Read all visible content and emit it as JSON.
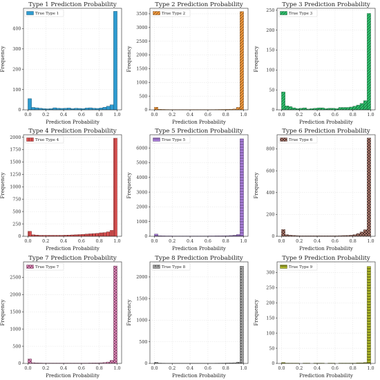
{
  "chart_data": [
    {
      "type": "bar",
      "title": "Type 1 Prediction Probability",
      "xlabel": "Prediction Probability",
      "ylabel": "Frequency",
      "legend": "True Type 1",
      "legend_position": "top-left",
      "color": "#2e9bd0",
      "hatch": "none",
      "grid": true,
      "xlim": [
        -0.05,
        1.05
      ],
      "ylim": [
        0,
        500
      ],
      "xticks": [
        "0.0",
        "0.2",
        "0.4",
        "0.6",
        "0.8",
        "1.0"
      ],
      "yticks": [
        0,
        100,
        200,
        300,
        400
      ],
      "bins": [
        0.0,
        0.04,
        0.08,
        0.12,
        0.16,
        0.2,
        0.24,
        0.28,
        0.32,
        0.36,
        0.4,
        0.44,
        0.48,
        0.52,
        0.56,
        0.6,
        0.64,
        0.68,
        0.72,
        0.76,
        0.8,
        0.84,
        0.88,
        0.92,
        0.96
      ],
      "values": [
        55,
        12,
        10,
        8,
        6,
        5,
        6,
        10,
        8,
        7,
        8,
        9,
        6,
        8,
        7,
        6,
        9,
        10,
        8,
        7,
        9,
        13,
        18,
        25,
        485
      ]
    },
    {
      "type": "bar",
      "title": "Type 2 Prediction Probability",
      "xlabel": "Prediction Probability",
      "ylabel": "Frequency",
      "legend": "True Type 2",
      "legend_position": "top-left",
      "color": "#f59a3c",
      "hatch": "diagonal",
      "grid": true,
      "xlim": [
        -0.05,
        1.05
      ],
      "ylim": [
        0,
        3700
      ],
      "xticks": [
        "0.0",
        "0.2",
        "0.4",
        "0.6",
        "0.8",
        "1.0"
      ],
      "yticks": [
        0,
        500,
        1000,
        1500,
        2000,
        2500,
        3000,
        3500
      ],
      "bins": [
        0.0,
        0.04,
        0.08,
        0.12,
        0.16,
        0.2,
        0.24,
        0.28,
        0.32,
        0.36,
        0.4,
        0.44,
        0.48,
        0.52,
        0.56,
        0.6,
        0.64,
        0.68,
        0.72,
        0.76,
        0.8,
        0.84,
        0.88,
        0.92,
        0.96
      ],
      "values": [
        95,
        20,
        15,
        12,
        10,
        10,
        10,
        10,
        10,
        10,
        10,
        10,
        10,
        10,
        10,
        10,
        10,
        12,
        14,
        15,
        18,
        22,
        30,
        90,
        3580
      ]
    },
    {
      "type": "bar",
      "title": "Type 3 Prediction Probability",
      "xlabel": "Prediction Probability",
      "ylabel": "Frequency",
      "legend": "True Type 3",
      "legend_position": "top-left",
      "color": "#2ec46e",
      "hatch": "diagonal",
      "grid": true,
      "xlim": [
        -0.05,
        1.05
      ],
      "ylim": [
        0,
        255
      ],
      "xticks": [
        "0.0",
        "0.2",
        "0.4",
        "0.6",
        "0.8",
        "1.0"
      ],
      "yticks": [
        0,
        50,
        100,
        150,
        200,
        250
      ],
      "bins": [
        0.0,
        0.04,
        0.08,
        0.12,
        0.16,
        0.2,
        0.24,
        0.28,
        0.32,
        0.36,
        0.4,
        0.44,
        0.48,
        0.52,
        0.56,
        0.6,
        0.64,
        0.68,
        0.72,
        0.76,
        0.8,
        0.84,
        0.88,
        0.92,
        0.96
      ],
      "values": [
        45,
        10,
        8,
        5,
        3,
        4,
        5,
        2,
        3,
        4,
        5,
        5,
        3,
        4,
        4,
        3,
        6,
        6,
        6,
        7,
        9,
        12,
        16,
        23,
        242
      ]
    },
    {
      "type": "bar",
      "title": "Type 4 Prediction Probability",
      "xlabel": "Prediction Probability",
      "ylabel": "Frequency",
      "legend": "True Type 4",
      "legend_position": "top-left",
      "color": "#e05252",
      "hatch": "vertical",
      "grid": true,
      "xlim": [
        -0.05,
        1.05
      ],
      "ylim": [
        0,
        2050
      ],
      "xticks": [
        "0.0",
        "0.2",
        "0.4",
        "0.6",
        "0.8",
        "1.0"
      ],
      "yticks": [
        0,
        250,
        500,
        750,
        1000,
        1250,
        1500,
        1750,
        2000
      ],
      "bins": [
        0.0,
        0.04,
        0.08,
        0.12,
        0.16,
        0.2,
        0.24,
        0.28,
        0.32,
        0.36,
        0.4,
        0.44,
        0.48,
        0.52,
        0.56,
        0.6,
        0.64,
        0.68,
        0.72,
        0.76,
        0.8,
        0.84,
        0.88,
        0.92,
        0.96
      ],
      "values": [
        100,
        30,
        25,
        20,
        20,
        20,
        20,
        20,
        20,
        20,
        22,
        25,
        28,
        32,
        35,
        40,
        45,
        50,
        55,
        60,
        70,
        75,
        90,
        120,
        1980
      ]
    },
    {
      "type": "bar",
      "title": "Type 5 Prediction Probability",
      "xlabel": "Prediction Probability",
      "ylabel": "Frequency",
      "legend": "True Type 5",
      "legend_position": "top-left",
      "color": "#a77bd8",
      "hatch": "horizontal",
      "grid": true,
      "xlim": [
        -0.05,
        1.05
      ],
      "ylim": [
        0,
        6900
      ],
      "xticks": [
        "0.0",
        "0.2",
        "0.4",
        "0.6",
        "0.8",
        "1.0"
      ],
      "yticks": [
        0,
        1000,
        2000,
        3000,
        4000,
        5000,
        6000
      ],
      "bins": [
        0.0,
        0.04,
        0.08,
        0.12,
        0.16,
        0.2,
        0.24,
        0.28,
        0.32,
        0.36,
        0.4,
        0.44,
        0.48,
        0.52,
        0.56,
        0.6,
        0.64,
        0.68,
        0.72,
        0.76,
        0.8,
        0.84,
        0.88,
        0.92,
        0.96
      ],
      "values": [
        150,
        40,
        30,
        25,
        25,
        20,
        20,
        20,
        20,
        20,
        20,
        20,
        20,
        20,
        20,
        25,
        25,
        30,
        30,
        35,
        40,
        50,
        70,
        120,
        6620
      ]
    },
    {
      "type": "bar",
      "title": "Type 6 Prediction Probability",
      "xlabel": "Prediction Probability",
      "ylabel": "Frequency",
      "legend": "True Type 6",
      "legend_position": "top-left",
      "color": "#b07a6e",
      "hatch": "checker",
      "grid": true,
      "xlim": [
        -0.05,
        1.05
      ],
      "ylim": [
        0,
        930
      ],
      "xticks": [
        "0.0",
        "0.2",
        "0.4",
        "0.6",
        "0.8",
        "1.0"
      ],
      "yticks": [
        0,
        200,
        400,
        600,
        800
      ],
      "bins": [
        0.0,
        0.04,
        0.08,
        0.12,
        0.16,
        0.2,
        0.24,
        0.28,
        0.32,
        0.36,
        0.4,
        0.44,
        0.48,
        0.52,
        0.56,
        0.6,
        0.64,
        0.68,
        0.72,
        0.76,
        0.8,
        0.84,
        0.88,
        0.92,
        0.96
      ],
      "values": [
        62,
        15,
        10,
        8,
        6,
        5,
        5,
        5,
        5,
        5,
        5,
        5,
        5,
        5,
        5,
        5,
        6,
        7,
        8,
        10,
        15,
        25,
        40,
        60,
        900
      ]
    },
    {
      "type": "bar",
      "title": "Type 7 Prediction Probability",
      "xlabel": "Prediction Probability",
      "ylabel": "Frequency",
      "legend": "True Type 7",
      "legend_position": "top-left",
      "color": "#f08bc4",
      "hatch": "cross",
      "grid": true,
      "xlim": [
        -0.05,
        1.05
      ],
      "ylim": [
        0,
        2950
      ],
      "xticks": [
        "0.0",
        "0.2",
        "0.4",
        "0.6",
        "0.8",
        "1.0"
      ],
      "yticks": [
        0,
        500,
        1000,
        1500,
        2000,
        2500
      ],
      "bins": [
        0.0,
        0.04,
        0.08,
        0.12,
        0.16,
        0.2,
        0.24,
        0.28,
        0.32,
        0.36,
        0.4,
        0.44,
        0.48,
        0.52,
        0.56,
        0.6,
        0.64,
        0.68,
        0.72,
        0.76,
        0.8,
        0.84,
        0.88,
        0.92,
        0.96
      ],
      "values": [
        130,
        20,
        15,
        12,
        10,
        10,
        10,
        10,
        10,
        10,
        10,
        10,
        10,
        10,
        10,
        10,
        10,
        12,
        14,
        15,
        18,
        25,
        40,
        90,
        2830
      ]
    },
    {
      "type": "bar",
      "title": "Type 8 Prediction Probability",
      "xlabel": "Prediction Probability",
      "ylabel": "Frequency",
      "legend": "True Type 8",
      "legend_position": "top-left",
      "color": "#9a9a9a",
      "hatch": "dots",
      "grid": true,
      "xlim": [
        -0.05,
        1.05
      ],
      "ylim": [
        0,
        2350
      ],
      "xticks": [
        "0.0",
        "0.2",
        "0.4",
        "0.6",
        "0.8",
        "1.0"
      ],
      "yticks": [
        0,
        500,
        1000,
        1500,
        2000
      ],
      "bins": [
        0.0,
        0.04,
        0.08,
        0.12,
        0.16,
        0.2,
        0.24,
        0.28,
        0.32,
        0.36,
        0.4,
        0.44,
        0.48,
        0.52,
        0.56,
        0.6,
        0.64,
        0.68,
        0.72,
        0.76,
        0.8,
        0.84,
        0.88,
        0.92,
        0.96
      ],
      "values": [
        25,
        8,
        6,
        5,
        5,
        5,
        5,
        5,
        5,
        5,
        5,
        5,
        5,
        5,
        5,
        5,
        5,
        6,
        7,
        8,
        10,
        12,
        15,
        30,
        2250
      ]
    },
    {
      "type": "bar",
      "title": "Type 9 Prediction Probability",
      "xlabel": "Prediction Probability",
      "ylabel": "Frequency",
      "legend": "True Type 9",
      "legend_position": "top-left",
      "color": "#b8c22a",
      "hatch": "zigzag",
      "grid": true,
      "xlim": [
        -0.05,
        1.05
      ],
      "ylim": [
        0,
        335
      ],
      "xticks": [
        "0.0",
        "0.2",
        "0.4",
        "0.6",
        "0.8",
        "1.0"
      ],
      "yticks": [
        0,
        50,
        100,
        150,
        200,
        250,
        300
      ],
      "bins": [
        0.0,
        0.04,
        0.08,
        0.12,
        0.16,
        0.2,
        0.24,
        0.28,
        0.32,
        0.36,
        0.4,
        0.44,
        0.48,
        0.52,
        0.56,
        0.6,
        0.64,
        0.68,
        0.72,
        0.76,
        0.8,
        0.84,
        0.88,
        0.92,
        0.96
      ],
      "values": [
        3,
        1,
        1,
        1,
        1,
        0,
        1,
        1,
        0,
        1,
        1,
        1,
        0,
        1,
        1,
        0,
        1,
        1,
        1,
        1,
        1,
        2,
        2,
        3,
        320
      ]
    }
  ]
}
